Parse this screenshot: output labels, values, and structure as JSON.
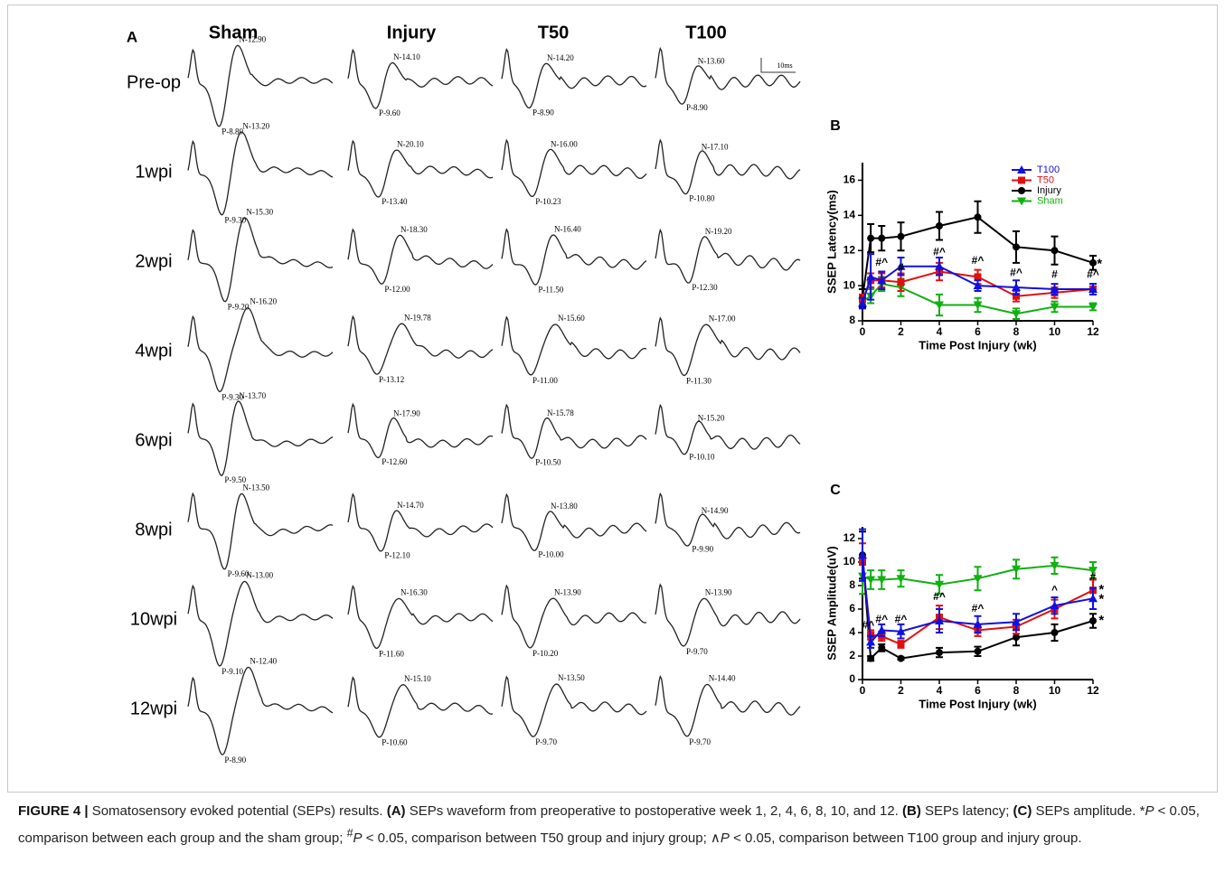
{
  "panel_a": {
    "label": "A",
    "columns": [
      "Sham",
      "Injury",
      "T50",
      "T100"
    ],
    "rows": [
      "Pre-op",
      "1wpi",
      "2wpi",
      "4wpi",
      "6wpi",
      "8wpi",
      "10wpi",
      "12wpi"
    ],
    "scale": "10ms",
    "peaks": [
      [
        [
          "N-12.90",
          "P-8.80"
        ],
        [
          "N-14.10",
          "P-9.60"
        ],
        [
          "N-14.20",
          "P-8.90"
        ],
        [
          "N-13.60",
          "P-8.90"
        ]
      ],
      [
        [
          "N-13.20",
          "P-9.30"
        ],
        [
          "N-20.10",
          "P-13.40"
        ],
        [
          "N-16.00",
          "P-10.23"
        ],
        [
          "N-17.10",
          "P-10.80"
        ]
      ],
      [
        [
          "N-15.30",
          "P-9.20"
        ],
        [
          "N-18.30",
          "P-12.00"
        ],
        [
          "N-16.40",
          "P-11.50"
        ],
        [
          "N-19.20",
          "P-12.30"
        ]
      ],
      [
        [
          "N-16.20",
          "P-9.30"
        ],
        [
          "N-19.78",
          "P-13.12"
        ],
        [
          "N-15.60",
          "P-11.00"
        ],
        [
          "N-17.00",
          "P-11.30"
        ]
      ],
      [
        [
          "N-13.70",
          "P-9.50"
        ],
        [
          "N-17.90",
          "P-12.60"
        ],
        [
          "N-15.78",
          "P-10.50"
        ],
        [
          "N-15.20",
          "P-10.10"
        ]
      ],
      [
        [
          "N-13.50",
          "P-9.60"
        ],
        [
          "N-14.70",
          "P-12.10"
        ],
        [
          "N-13.80",
          "P-10.00"
        ],
        [
          "N-14.90",
          "P-9.90"
        ]
      ],
      [
        [
          "N-13.00",
          "P-9.10"
        ],
        [
          "N-16.30",
          "P-11.60"
        ],
        [
          "N-13.90",
          "P-10.20"
        ],
        [
          "N-13.90",
          "P-9.70"
        ]
      ],
      [
        [
          "N-12.40",
          "P-8.90"
        ],
        [
          "N-15.10",
          "P-10.60"
        ],
        [
          "N-13.50",
          "P-9.70"
        ],
        [
          "N-14.40",
          "P-9.70"
        ]
      ]
    ]
  },
  "chart_data": [
    {
      "type": "line",
      "label": "B",
      "x_label": "Time Post Injury (wk)",
      "y_label": "SSEP Latency(ms)",
      "x": [
        0,
        0.43,
        1,
        2,
        4,
        6,
        8,
        10,
        12
      ],
      "xlim": [
        0,
        12
      ],
      "xticks": [
        0,
        2,
        4,
        6,
        8,
        10,
        12
      ],
      "ylim": [
        8,
        17
      ],
      "yticks": [
        8,
        10,
        12,
        14,
        16
      ],
      "legend": "upper right",
      "series": [
        {
          "name": "T100",
          "color": "#1010e0",
          "marker": "triangle",
          "values": [
            9.0,
            10.5,
            10.3,
            11.1,
            11.1,
            10.0,
            9.9,
            9.8,
            9.8
          ],
          "errors": [
            0.3,
            1.3,
            0.5,
            0.5,
            0.5,
            0.3,
            0.4,
            0.3,
            0.3
          ]
        },
        {
          "name": "T50",
          "color": "#e01010",
          "marker": "square",
          "values": [
            9.2,
            10.3,
            10.3,
            10.2,
            10.8,
            10.5,
            9.4,
            9.6,
            9.8
          ],
          "errors": [
            0.3,
            0.4,
            0.4,
            0.5,
            0.5,
            0.4,
            0.3,
            0.3,
            0.3
          ]
        },
        {
          "name": "Injury",
          "color": "#000000",
          "marker": "circle",
          "values": [
            9.3,
            12.7,
            12.7,
            12.8,
            13.4,
            13.9,
            12.2,
            12.0,
            11.3
          ],
          "errors": [
            0.5,
            0.8,
            0.7,
            0.8,
            0.8,
            0.9,
            0.9,
            0.8,
            0.4
          ]
        },
        {
          "name": "Sham",
          "color": "#10b010",
          "marker": "triangle-down",
          "values": [
            9.1,
            9.4,
            10.1,
            9.9,
            8.9,
            8.9,
            8.4,
            8.8,
            8.8
          ],
          "errors": [
            0.3,
            0.4,
            0.4,
            0.5,
            0.6,
            0.4,
            0.3,
            0.3,
            0.2
          ]
        }
      ],
      "annotations": [
        {
          "text": "#^",
          "x": 1,
          "y": 11.3
        },
        {
          "text": "#",
          "x": 2,
          "y": 11.0
        },
        {
          "text": "#^",
          "x": 4,
          "y": 11.9
        },
        {
          "text": "#^",
          "x": 6,
          "y": 11.4
        },
        {
          "text": "#^",
          "x": 8,
          "y": 10.7
        },
        {
          "text": "#",
          "x": 10,
          "y": 10.6
        },
        {
          "text": "#^",
          "x": 12,
          "y": 10.6
        },
        {
          "text": "*",
          "x": 12.2,
          "y": 11.2
        }
      ]
    },
    {
      "type": "line",
      "label": "C",
      "x_label": "Time Post Injury (wk)",
      "y_label": "SSEP Amplitude(uV)",
      "x": [
        0,
        0.43,
        1,
        2,
        4,
        6,
        8,
        10,
        12
      ],
      "xlim": [
        0,
        12
      ],
      "xticks": [
        0,
        2,
        4,
        6,
        8,
        10,
        12
      ],
      "ylim": [
        0,
        13
      ],
      "yticks": [
        0,
        2,
        4,
        6,
        8,
        10,
        12
      ],
      "series": [
        {
          "name": "T100",
          "color": "#1010e0",
          "marker": "triangle",
          "values": [
            10.6,
            3.2,
            4.2,
            4.1,
            5.0,
            4.7,
            4.9,
            6.3,
            6.9
          ],
          "errors": [
            2.2,
            0.5,
            0.5,
            0.6,
            1.0,
            0.7,
            0.7,
            0.7,
            0.9
          ]
        },
        {
          "name": "T50",
          "color": "#e01010",
          "marker": "square",
          "values": [
            10.0,
            3.8,
            3.7,
            3.0,
            5.3,
            4.2,
            4.5,
            6.0,
            7.6
          ],
          "errors": [
            1.6,
            0.4,
            0.4,
            0.3,
            1.0,
            0.5,
            0.6,
            0.8,
            0.9
          ]
        },
        {
          "name": "Injury",
          "color": "#000000",
          "marker": "circle",
          "values": [
            10.6,
            1.8,
            2.7,
            1.8,
            2.3,
            2.4,
            3.6,
            4.0,
            5.0
          ],
          "errors": [
            2.0,
            0.2,
            0.3,
            0.1,
            0.4,
            0.4,
            0.7,
            0.7,
            0.6
          ]
        },
        {
          "name": "Sham",
          "color": "#10b010",
          "marker": "triangle-down",
          "values": [
            8.8,
            8.5,
            8.5,
            8.6,
            8.1,
            8.6,
            9.4,
            9.7,
            9.3
          ],
          "errors": [
            1.5,
            0.8,
            0.8,
            0.7,
            0.8,
            1.0,
            0.8,
            0.7,
            0.7
          ]
        }
      ],
      "annotations": [
        {
          "text": "#^",
          "x": 0.3,
          "y": 4.6
        },
        {
          "text": "#^",
          "x": 1,
          "y": 5.1
        },
        {
          "text": "#^",
          "x": 2,
          "y": 5.1
        },
        {
          "text": "#^",
          "x": 4,
          "y": 7.0
        },
        {
          "text": "#^",
          "x": 6,
          "y": 6.0
        },
        {
          "text": "^",
          "x": 10,
          "y": 7.6
        },
        {
          "text": "#",
          "x": 12,
          "y": 8.7
        },
        {
          "text": "*",
          "x": 12.3,
          "y": 7.6
        },
        {
          "text": "*",
          "x": 12.3,
          "y": 6.8
        },
        {
          "text": "*",
          "x": 12.3,
          "y": 5.0
        }
      ]
    }
  ],
  "caption": [
    "FIGURE 4 |",
    " Somatosensory evoked potential (SEPs) results. ",
    "(A)",
    " SEPs waveform from preoperative to postoperative week 1, 2, 4, 6, 8, 10, and 12. ",
    "(B)",
    " SEPs latency; ",
    "(C)",
    " SEPs amplitude. *",
    "P",
    " < 0.05, comparison between each group and the sham group; ",
    "#",
    "P",
    " < 0.05, comparison between T50 group and injury group; ∧",
    "P",
    " < 0.05, comparison between T100 group and injury group."
  ]
}
